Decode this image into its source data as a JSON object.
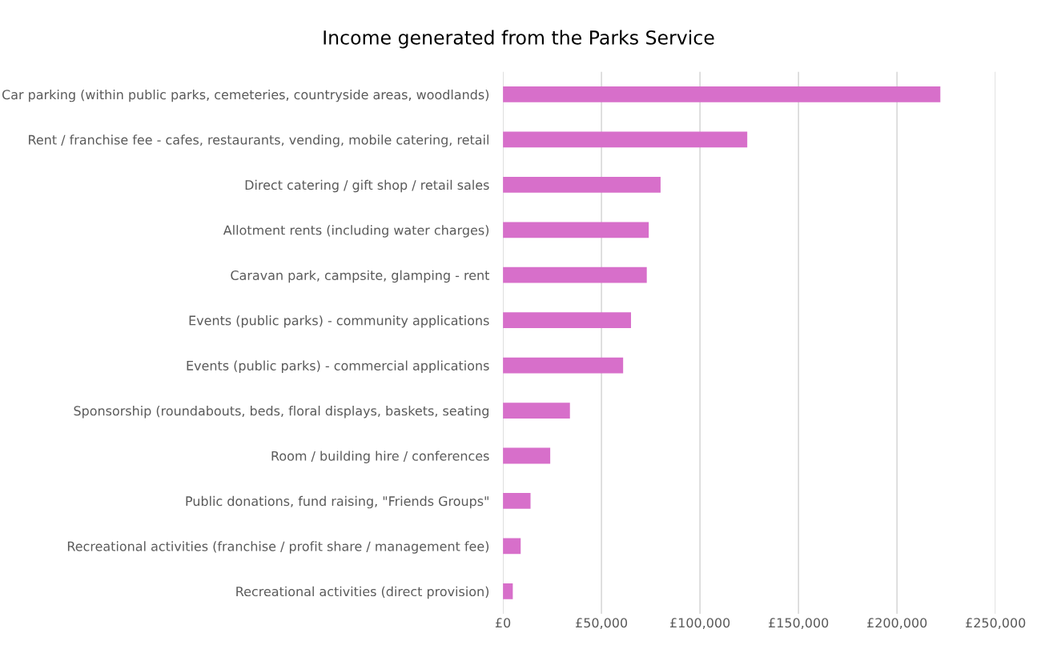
{
  "chart_data": {
    "type": "bar",
    "orientation": "horizontal",
    "title": "Income generated from the Parks Service",
    "categories": [
      "Car parking (within public parks, cemeteries, countryside areas, woodlands)",
      "Rent / franchise fee - cafes, restaurants, vending, mobile catering, retail",
      "Direct catering / gift shop / retail sales",
      "Allotment rents (including water charges)",
      "Caravan park, campsite, glamping - rent",
      "Events (public parks) - community applications",
      "Events (public parks) - commercial applications",
      "Sponsorship (roundabouts, beds, floral displays, baskets, seating",
      "Room / building hire / conferences",
      "Public donations, fund raising, \"Friends Groups\"",
      "Recreational activities (franchise / profit share / management fee)",
      "Recreational activities (direct provision)"
    ],
    "values": [
      222000,
      124000,
      80000,
      74000,
      73000,
      65000,
      61000,
      34000,
      24000,
      14000,
      9000,
      5000
    ],
    "color": "#d76fca",
    "xlim": [
      0,
      250000
    ],
    "xticks": [
      {
        "value": 0,
        "label": "£0"
      },
      {
        "value": 50000,
        "label": "£50,000"
      },
      {
        "value": 100000,
        "label": "£100,000"
      },
      {
        "value": 150000,
        "label": "£150,000"
      },
      {
        "value": 200000,
        "label": "£200,000"
      },
      {
        "value": 250000,
        "label": "£250,000"
      }
    ],
    "grid": "x",
    "legend": false
  }
}
